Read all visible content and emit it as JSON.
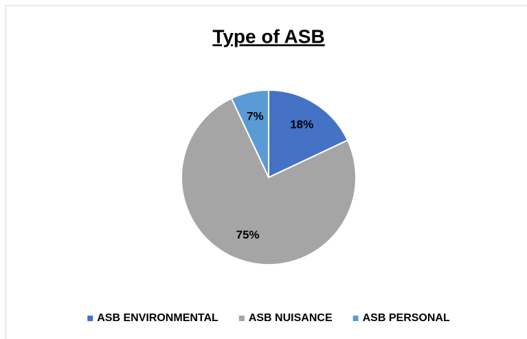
{
  "chart_data": {
    "type": "pie",
    "title": "Type of ASB",
    "categories": [
      "ASB ENVIRONMENTAL",
      "ASB NUISANCE",
      "ASB PERSONAL"
    ],
    "values": [
      18,
      75,
      7
    ],
    "value_labels": [
      "18%",
      "75%",
      "7%"
    ],
    "colors": [
      "#4472c4",
      "#a5a5a5",
      "#5b9bd5"
    ],
    "legend": "bottom"
  }
}
